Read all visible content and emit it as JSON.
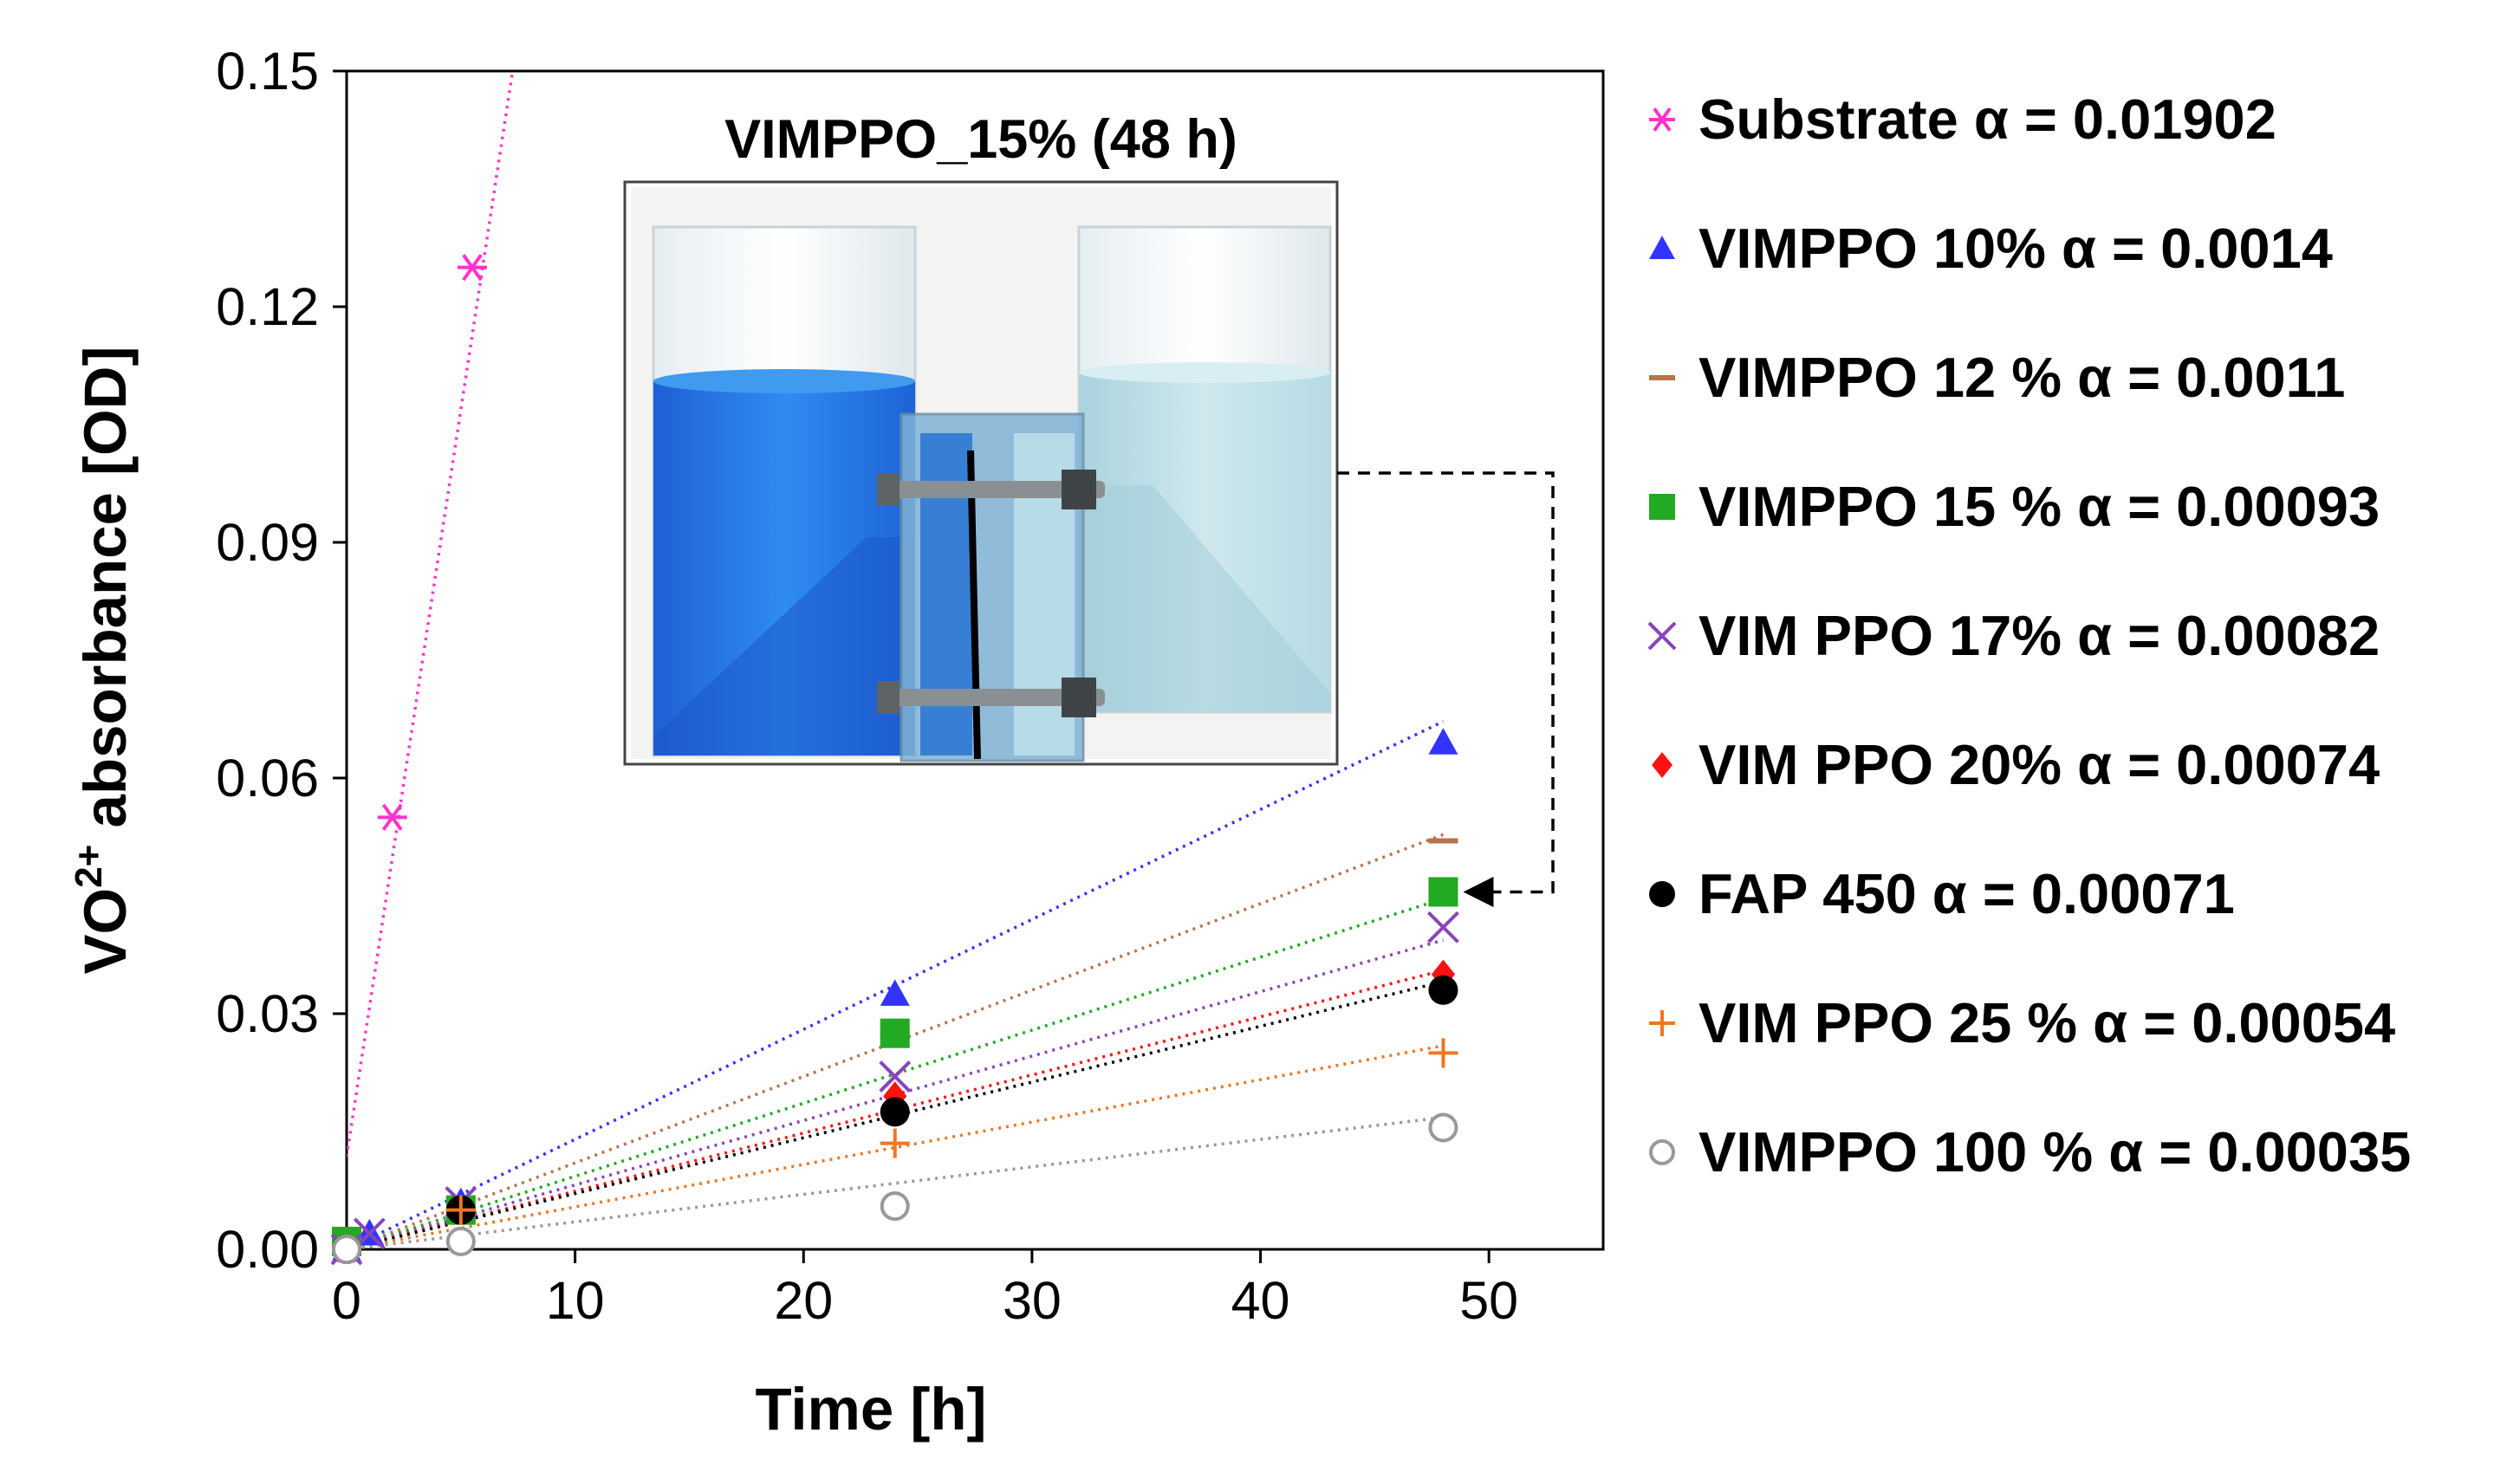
{
  "chart_data": {
    "type": "scatter",
    "title": "",
    "xlabel": "Time [h]",
    "ylabel": {
      "prefix": "VO",
      "sup": "2+",
      "suffix": " absorbance [OD]"
    },
    "xlim": [
      0,
      55
    ],
    "ylim": [
      0,
      0.15
    ],
    "xticks": [
      "0",
      "10",
      "20",
      "30",
      "40",
      "50"
    ],
    "yticks": [
      "0.00",
      "0.03",
      "0.06",
      "0.09",
      "0.12",
      "0.15"
    ],
    "grid": false,
    "legend_position": "right",
    "inset": {
      "title": "VIMPPO_15% (48 h)",
      "photo": "two-beaker-diffusion-cell",
      "arrow_target_series": "VIMPPO 15 %"
    },
    "series": [
      {
        "name": "Substrate  α = 0.01902",
        "marker": "asterisk",
        "color": "#ff33cc",
        "slope": 0.01902,
        "intercept": 0.0118,
        "points": [
          [
            0,
            0.0
          ],
          [
            2,
            0.055
          ],
          [
            5.5,
            0.125
          ]
        ]
      },
      {
        "name": "VIMPPO 10% α = 0.0014",
        "marker": "triangle",
        "color": "#3333ff",
        "slope": 0.0014,
        "points": [
          [
            0,
            0.0
          ],
          [
            1,
            0.002
          ],
          [
            5,
            0.006
          ],
          [
            24,
            0.0325
          ],
          [
            48,
            0.0645
          ]
        ]
      },
      {
        "name": "VIMPPO 12 % α = 0.0011",
        "marker": "dash",
        "color": "#b8734a",
        "slope": 0.0011,
        "points": [
          [
            0,
            0.0
          ],
          [
            5,
            0.005
          ],
          [
            24,
            0.027
          ],
          [
            48,
            0.052
          ]
        ]
      },
      {
        "name": "VIMPPO 15 % α = 0.00093",
        "marker": "square",
        "color": "#22aa22",
        "slope": 0.00093,
        "points": [
          [
            0,
            0.001
          ],
          [
            5,
            0.005
          ],
          [
            24,
            0.0275
          ],
          [
            48,
            0.0455
          ]
        ]
      },
      {
        "name": "VIM PPO 17%  α = 0.00082",
        "marker": "x",
        "color": "#8844bb",
        "slope": 0.00082,
        "points": [
          [
            0,
            0.0
          ],
          [
            1,
            0.002
          ],
          [
            5,
            0.006
          ],
          [
            24,
            0.022
          ],
          [
            48,
            0.041
          ]
        ]
      },
      {
        "name": "VIM PPO 20%  α = 0.00074",
        "marker": "diamond",
        "color": "#ff1111",
        "slope": 0.00074,
        "points": [
          [
            0,
            0.0
          ],
          [
            5,
            0.005
          ],
          [
            24,
            0.0195
          ],
          [
            48,
            0.035
          ]
        ]
      },
      {
        "name": "FAP 450  α = 0.00071",
        "marker": "circle",
        "color": "#000000",
        "slope": 0.00071,
        "points": [
          [
            0,
            0.0
          ],
          [
            5,
            0.005
          ],
          [
            24,
            0.0175
          ],
          [
            48,
            0.033
          ]
        ]
      },
      {
        "name": "VIM PPO 25 % α = 0.00054",
        "marker": "plus",
        "color": "#ee7722",
        "slope": 0.00054,
        "points": [
          [
            0,
            0.0
          ],
          [
            5,
            0.005
          ],
          [
            24,
            0.0135
          ],
          [
            48,
            0.025
          ]
        ]
      },
      {
        "name": "VIMPPO 100 % α = 0.00035",
        "marker": "open-circle",
        "color": "#999999",
        "slope": 0.00035,
        "points": [
          [
            0,
            0.0
          ],
          [
            5,
            0.001
          ],
          [
            24,
            0.0055
          ],
          [
            48,
            0.0155
          ]
        ]
      }
    ]
  }
}
